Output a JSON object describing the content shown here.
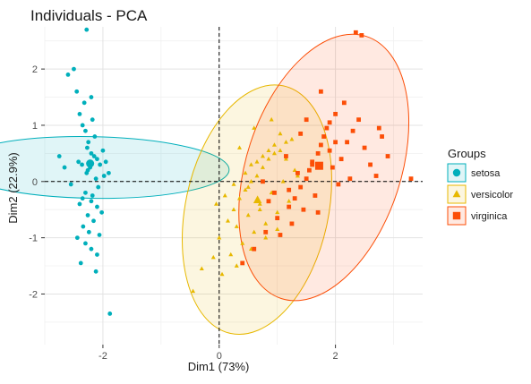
{
  "chart_data": {
    "type": "scatter",
    "title": "Individuals - PCA",
    "xlabel": "Dim1 (73%)",
    "ylabel": "Dim2 (22.9%)",
    "xlim": [
      -3.0,
      3.5
    ],
    "ylim": [
      -2.9,
      2.75
    ],
    "x_ticks": [
      -2,
      0,
      2
    ],
    "x_tick_labels": [
      "-2",
      "0",
      "2"
    ],
    "y_ticks": [
      -2,
      -1,
      0,
      1,
      2
    ],
    "y_tick_labels": [
      "-2",
      "-1",
      "0",
      "1",
      "2"
    ],
    "grid": true,
    "reference_lines": {
      "x": 0,
      "y": 0,
      "style": "dashed"
    },
    "legend": {
      "title": "Groups",
      "position": "right",
      "entries": [
        "setosa",
        "versicolor",
        "virginica"
      ]
    },
    "series": [
      {
        "name": "setosa",
        "color": "#00AFBB",
        "marker": "circle",
        "ellipse": {
          "cx": -2.2,
          "cy": 0.25,
          "rx": 0.53,
          "ry": 2.45,
          "angle_deg": 91
        },
        "center": [
          -2.22,
          0.32
        ],
        "x": [
          -2.6,
          -2.5,
          -2.45,
          -2.4,
          -2.35,
          -2.3,
          -2.25,
          -2.2,
          -2.15,
          -2.1,
          -2.05,
          -2.0,
          -1.95,
          -1.9,
          -2.28,
          -2.32,
          -2.18,
          -2.14,
          -2.42,
          -2.36,
          -2.26,
          -2.22,
          -2.12,
          -2.08,
          -2.3,
          -2.2,
          -2.4,
          -2.1,
          -2.02,
          -2.26,
          -2.16,
          -2.34,
          -2.24,
          -2.06,
          -2.44,
          -2.3,
          -2.2,
          -2.1,
          -2.38,
          -2.18,
          -2.28,
          -2.66,
          -2.75,
          -2.55,
          -2.2,
          -2.27,
          -2.35,
          -1.98,
          -2.12,
          -1.88
        ],
        "y": [
          1.9,
          2.0,
          1.6,
          1.2,
          1.0,
          0.9,
          0.7,
          0.5,
          0.45,
          0.4,
          0.3,
          0.55,
          0.35,
          0.15,
          2.7,
          1.4,
          1.1,
          0.8,
          0.35,
          0.3,
          0.2,
          0.25,
          0.05,
          -0.1,
          -0.2,
          -0.35,
          -0.4,
          -0.45,
          -0.55,
          -0.6,
          -0.7,
          -0.8,
          -0.9,
          -0.95,
          -1.0,
          -1.1,
          -1.2,
          -1.3,
          -1.45,
          -0.25,
          0.15,
          0.25,
          0.45,
          -0.05,
          1.5,
          0.6,
          -0.3,
          0.1,
          -1.6,
          -2.35
        ]
      },
      {
        "name": "versicolor",
        "color": "#E7B800",
        "marker": "triangle",
        "ellipse": {
          "cx": 0.65,
          "cy": -0.5,
          "rx": 1.23,
          "ry": 2.25,
          "angle_deg": 12
        },
        "center": [
          0.66,
          -0.33
        ],
        "x": [
          -0.3,
          -0.1,
          0.0,
          0.15,
          0.25,
          0.35,
          0.45,
          0.55,
          0.65,
          0.75,
          0.85,
          0.95,
          1.05,
          1.15,
          1.25,
          0.3,
          0.5,
          0.7,
          0.9,
          1.1,
          0.2,
          0.4,
          0.6,
          0.8,
          1.0,
          1.2,
          1.3,
          0.55,
          0.75,
          0.95,
          -0.05,
          0.1,
          0.25,
          0.45,
          0.65,
          0.85,
          1.05,
          0.35,
          0.6,
          0.9,
          1.15,
          0.05,
          0.3,
          0.55,
          0.8,
          1.0,
          0.7,
          0.5,
          -0.45,
          1.35
        ],
        "y": [
          -1.55,
          -1.35,
          -1.0,
          -0.7,
          -0.5,
          -0.3,
          -0.15,
          0.0,
          0.1,
          0.25,
          0.4,
          0.5,
          0.55,
          0.7,
          0.75,
          -0.8,
          -0.6,
          -0.4,
          -0.2,
          0.0,
          -1.3,
          -1.1,
          -0.9,
          -0.75,
          -0.55,
          -0.35,
          0.2,
          0.3,
          0.45,
          0.65,
          -0.4,
          -0.25,
          -0.05,
          0.15,
          0.35,
          0.55,
          0.85,
          0.6,
          0.95,
          1.1,
          0.4,
          -1.65,
          -1.5,
          -1.2,
          -1.0,
          -0.85,
          -0.5,
          -0.1,
          -1.95,
          0.1
        ]
      },
      {
        "name": "virginica",
        "color": "#FC4E07",
        "marker": "square",
        "ellipse": {
          "cx": 1.8,
          "cy": 0.25,
          "rx": 1.33,
          "ry": 2.45,
          "angle_deg": 18
        },
        "center": [
          1.72,
          0.28
        ],
        "x": [
          0.4,
          0.6,
          0.8,
          1.0,
          1.2,
          1.3,
          1.4,
          1.5,
          1.55,
          1.6,
          1.7,
          1.75,
          1.8,
          1.85,
          1.9,
          2.0,
          2.1,
          2.2,
          2.3,
          2.4,
          2.5,
          2.6,
          2.7,
          2.8,
          2.9,
          1.65,
          1.45,
          1.35,
          1.95,
          2.05,
          1.15,
          0.95,
          1.25,
          1.05,
          0.85,
          1.6,
          2.25,
          2.15,
          1.75,
          1.9,
          0.75,
          1.5,
          2.35,
          3.3,
          2.75,
          1.7,
          1.4,
          2.0,
          1.2,
          2.45
        ],
        "y": [
          -1.45,
          -1.2,
          -0.9,
          -0.65,
          -0.45,
          -0.3,
          -0.1,
          0.05,
          0.2,
          0.35,
          0.5,
          0.65,
          0.8,
          0.95,
          1.05,
          1.2,
          0.4,
          0.7,
          0.9,
          1.1,
          0.6,
          0.3,
          0.1,
          0.8,
          0.45,
          -0.25,
          -0.5,
          0.15,
          0.25,
          -0.05,
          0.45,
          -0.2,
          -0.75,
          -0.95,
          -0.35,
          0.3,
          0.05,
          1.4,
          1.6,
          0.55,
          0.0,
          1.1,
          2.65,
          0.05,
          0.95,
          -0.55,
          0.85,
          0.7,
          -0.15,
          2.6
        ]
      }
    ]
  }
}
